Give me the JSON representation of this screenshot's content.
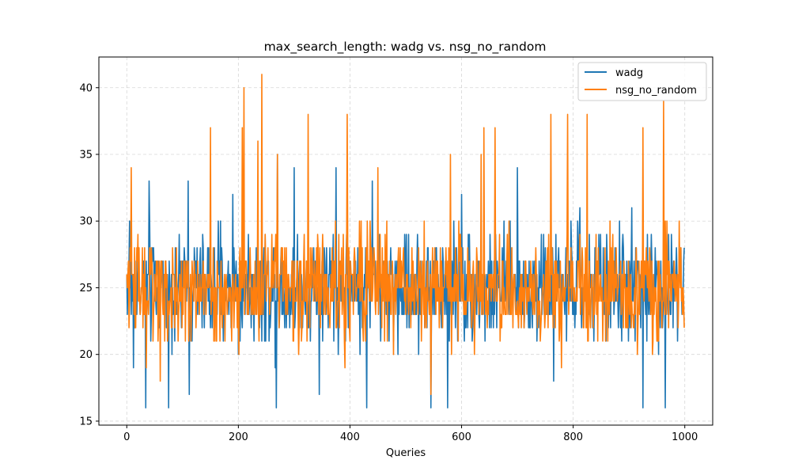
{
  "chart_data": {
    "type": "line",
    "title": "max_search_length: wadg vs. nsg_no_random",
    "xlabel": "Queries",
    "ylabel": "",
    "xlim": [
      -50,
      1050
    ],
    "ylim": [
      14.7,
      42.3
    ],
    "xticks": [
      0,
      200,
      400,
      600,
      800,
      1000
    ],
    "yticks": [
      15,
      20,
      25,
      30,
      35,
      40
    ],
    "grid": true,
    "legend_position": "top-right",
    "n_points": 1000,
    "series": [
      {
        "name": "wadg",
        "color": "#1f77b4",
        "range": [
          16,
          35
        ],
        "mean": 25,
        "keypoints": [
          [
            0,
            26
          ],
          [
            5,
            30
          ],
          [
            12,
            19
          ],
          [
            34,
            16
          ],
          [
            40,
            33
          ],
          [
            75,
            16
          ],
          [
            110,
            33
          ],
          [
            112,
            17
          ],
          [
            190,
            32
          ],
          [
            200,
            20
          ],
          [
            268,
            16
          ],
          [
            270,
            35
          ],
          [
            300,
            34
          ],
          [
            345,
            17
          ],
          [
            375,
            34
          ],
          [
            430,
            16
          ],
          [
            440,
            33
          ],
          [
            545,
            16
          ],
          [
            575,
            16
          ],
          [
            600,
            32
          ],
          [
            700,
            34
          ],
          [
            765,
            18
          ],
          [
            812,
            31
          ],
          [
            905,
            31
          ],
          [
            925,
            16
          ],
          [
            965,
            16
          ],
          [
            998,
            27
          ]
        ]
      },
      {
        "name": "nsg_no_random",
        "color": "#ff7f0e",
        "range": [
          17,
          41
        ],
        "mean": 25,
        "keypoints": [
          [
            0,
            26
          ],
          [
            8,
            34
          ],
          [
            35,
            19
          ],
          [
            48,
            23
          ],
          [
            60,
            18
          ],
          [
            150,
            37
          ],
          [
            190,
            26
          ],
          [
            207,
            37
          ],
          [
            210,
            40
          ],
          [
            235,
            36
          ],
          [
            242,
            41
          ],
          [
            270,
            35
          ],
          [
            325,
            38
          ],
          [
            395,
            38
          ],
          [
            450,
            34
          ],
          [
            545,
            17
          ],
          [
            580,
            35
          ],
          [
            635,
            35
          ],
          [
            640,
            37
          ],
          [
            660,
            37
          ],
          [
            760,
            38
          ],
          [
            790,
            38
          ],
          [
            825,
            38
          ],
          [
            925,
            37
          ],
          [
            962,
            39
          ],
          [
            990,
            30
          ],
          [
            999,
            22
          ]
        ]
      }
    ]
  },
  "legend": {
    "items": [
      {
        "label": "wadg",
        "color": "#1f77b4"
      },
      {
        "label": "nsg_no_random",
        "color": "#ff7f0e"
      }
    ]
  }
}
